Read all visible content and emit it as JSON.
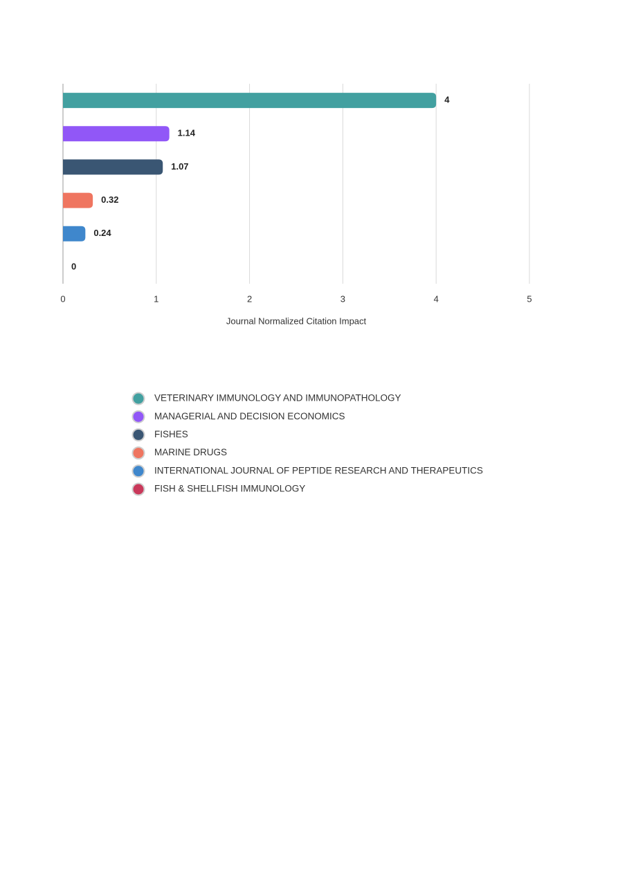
{
  "chart_data": {
    "type": "bar",
    "orientation": "horizontal",
    "categories": [
      "VETERINARY IMMUNOLOGY AND IMMUNOPATHOLOGY",
      "MANAGERIAL AND DECISION ECONOMICS",
      "FISHES",
      "MARINE DRUGS",
      "INTERNATIONAL JOURNAL OF PEPTIDE RESEARCH AND THERAPEUTICS",
      "FISH & SHELLFISH IMMUNOLOGY"
    ],
    "values": [
      4,
      1.14,
      1.07,
      0.32,
      0.24,
      0
    ],
    "colors": [
      "#42a0a0",
      "#9157f7",
      "#3a5673",
      "#ef7560",
      "#3f87cc",
      "#c9385a"
    ],
    "xlabel": "Journal Normalized Citation Impact",
    "xlim": [
      0,
      5
    ],
    "xticks": [
      0,
      1,
      2,
      3,
      4,
      5
    ],
    "grid": true,
    "legend": "bottom"
  }
}
